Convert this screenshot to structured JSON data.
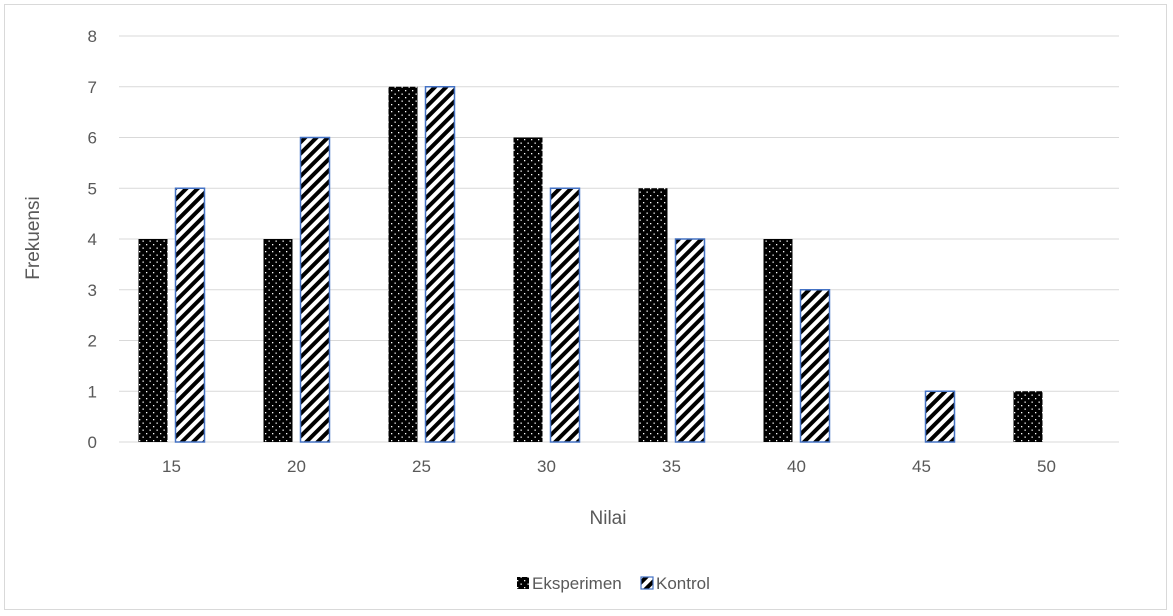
{
  "chart_data": {
    "type": "bar",
    "title": "",
    "xlabel": "Nilai",
    "ylabel": "Frekuensi",
    "categories": [
      "15",
      "20",
      "25",
      "30",
      "35",
      "40",
      "45",
      "50"
    ],
    "ylim": [
      0,
      8
    ],
    "yticks": [
      0,
      1,
      2,
      3,
      4,
      5,
      6,
      7,
      8
    ],
    "grid": true,
    "legend_position": "bottom",
    "series": [
      {
        "name": "Eksperimen",
        "values": [
          4,
          4,
          7,
          6,
          5,
          4,
          0,
          1
        ],
        "pattern": "dotted",
        "color": "#000000"
      },
      {
        "name": "Kontrol",
        "values": [
          5,
          6,
          7,
          5,
          4,
          3,
          1,
          0
        ],
        "pattern": "diagonal-stripes",
        "color": "#000000",
        "border_color": "#4472c4"
      }
    ]
  }
}
